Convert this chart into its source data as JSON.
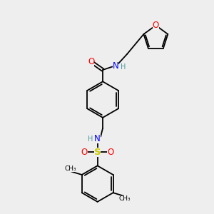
{
  "background_color": "#eeeeee",
  "bond_color": "#000000",
  "O_color": "#ff0000",
  "N_color": "#0000ff",
  "S_color": "#cccc00",
  "H_color": "#4a9a9a",
  "C_color": "#000000",
  "figsize": [
    3.0,
    3.0
  ],
  "dpi": 100,
  "xlim": [
    0,
    10
  ],
  "ylim": [
    0,
    10
  ]
}
